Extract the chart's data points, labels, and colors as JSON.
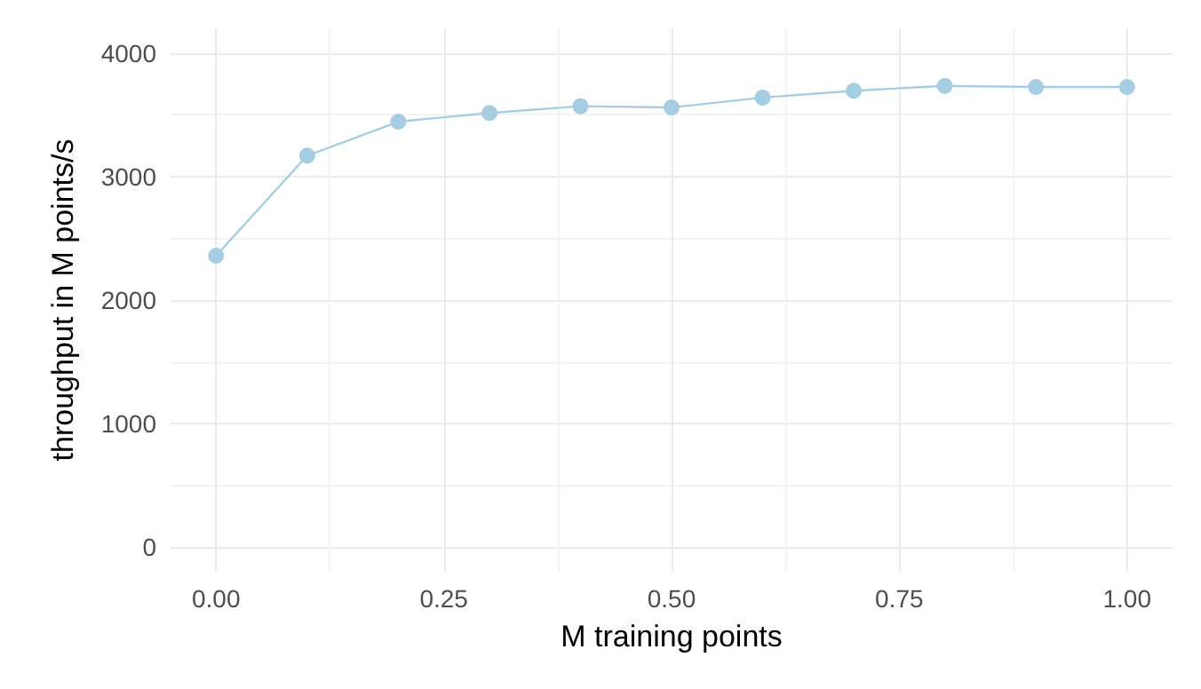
{
  "chart_data": {
    "type": "line",
    "xlabel": "M training points",
    "ylabel": "throughput in M points/s",
    "x": [
      0,
      0.1,
      0.2,
      0.3,
      0.4,
      0.5,
      0.6,
      0.7,
      0.8,
      0.9,
      1.0
    ],
    "series": [
      {
        "color": "#a6cee3",
        "values": [
          2360,
          3170,
          3445,
          3515,
          3570,
          3560,
          3640,
          3695,
          3735,
          3725,
          3725
        ]
      }
    ],
    "xlim": [
      -0.05,
      1.05
    ],
    "xticks": [
      {
        "value": 0,
        "label": "0.00"
      },
      {
        "value": 0.25,
        "label": "0.25"
      },
      {
        "value": 0.5,
        "label": "0.50"
      },
      {
        "value": 0.75,
        "label": "0.75"
      },
      {
        "value": 1,
        "label": "1.00"
      }
    ],
    "ylim": [
      -200,
      4200
    ],
    "yticks": [
      0,
      1000,
      2000,
      3000,
      4000
    ],
    "grid": true,
    "marker": "circle",
    "line_style": "solid"
  }
}
